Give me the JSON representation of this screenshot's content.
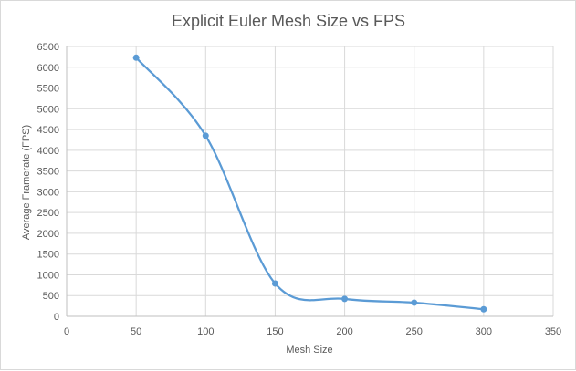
{
  "chart_data": {
    "type": "scatter",
    "title": "Explicit Euler Mesh Size vs FPS",
    "xlabel": "Mesh Size",
    "ylabel": "Average Framerate (FPS)",
    "xlim": [
      0,
      350
    ],
    "ylim": [
      0,
      6500
    ],
    "x_ticks": [
      0,
      50,
      100,
      150,
      200,
      250,
      300,
      350
    ],
    "y_ticks": [
      0,
      500,
      1000,
      1500,
      2000,
      2500,
      3000,
      3500,
      4000,
      4500,
      5000,
      5500,
      6000,
      6500
    ],
    "grid": true,
    "smooth_line": true,
    "legend": "none",
    "series": [
      {
        "color": "#5b9bd5",
        "x": [
          50,
          100,
          150,
          200,
          250,
          300
        ],
        "y": [
          6230,
          4350,
          790,
          420,
          330,
          170
        ]
      }
    ]
  }
}
